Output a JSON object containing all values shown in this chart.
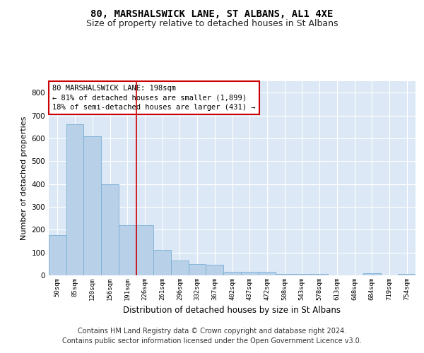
{
  "title": "80, MARSHALSWICK LANE, ST ALBANS, AL1 4XE",
  "subtitle": "Size of property relative to detached houses in St Albans",
  "xlabel": "Distribution of detached houses by size in St Albans",
  "ylabel": "Number of detached properties",
  "bar_color": "#b8d0e8",
  "bar_edge_color": "#7aafd4",
  "background_color": "#dce8f5",
  "grid_color": "#ffffff",
  "fig_background": "#ffffff",
  "categories": [
    "50sqm",
    "85sqm",
    "120sqm",
    "156sqm",
    "191sqm",
    "226sqm",
    "261sqm",
    "296sqm",
    "332sqm",
    "367sqm",
    "402sqm",
    "437sqm",
    "472sqm",
    "508sqm",
    "543sqm",
    "578sqm",
    "613sqm",
    "648sqm",
    "684sqm",
    "719sqm",
    "754sqm"
  ],
  "values": [
    175,
    660,
    610,
    400,
    218,
    218,
    110,
    65,
    50,
    45,
    17,
    16,
    14,
    7,
    7,
    7,
    0,
    0,
    8,
    0,
    6
  ],
  "ylim": [
    0,
    850
  ],
  "yticks": [
    0,
    100,
    200,
    300,
    400,
    500,
    600,
    700,
    800
  ],
  "vline_x": 4.5,
  "vline_color": "#cc0000",
  "annotation_text": "80 MARSHALSWICK LANE: 198sqm\n← 81% of detached houses are smaller (1,899)\n18% of semi-detached houses are larger (431) →",
  "annotation_box_color": "#ffffff",
  "annotation_box_edge_color": "#cc0000",
  "footer_line1": "Contains HM Land Registry data © Crown copyright and database right 2024.",
  "footer_line2": "Contains public sector information licensed under the Open Government Licence v3.0.",
  "title_fontsize": 10,
  "subtitle_fontsize": 9,
  "annotation_fontsize": 7.5,
  "footer_fontsize": 7,
  "ylabel_fontsize": 8,
  "xlabel_fontsize": 8.5
}
